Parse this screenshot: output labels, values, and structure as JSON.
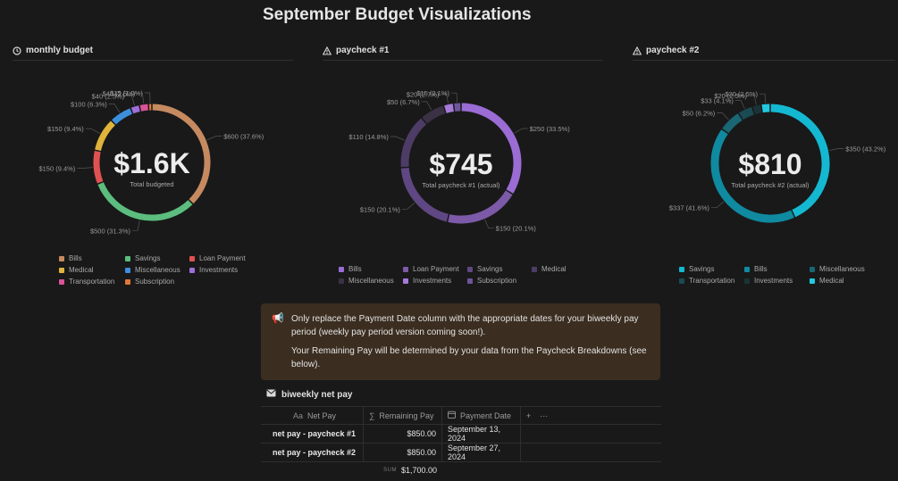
{
  "page": {
    "title": "September Budget Visualizations"
  },
  "panels": [
    {
      "title": "monthly budget",
      "center_value": "$1.6K",
      "center_caption": "Total budgeted",
      "slices": [
        {
          "name": "Bills",
          "value": 600,
          "label": "$600 (37.6%)",
          "color": "#c68a60"
        },
        {
          "name": "Savings",
          "value": 500,
          "label": "$500 (31.3%)",
          "color": "#5cbd7e"
        },
        {
          "name": "Loan Payment",
          "value": 150,
          "label": "$150 (9.4%)",
          "color": "#e05252"
        },
        {
          "name": "Medical",
          "value": 150,
          "label": "$150 (9.4%)",
          "color": "#e0b43a"
        },
        {
          "name": "Miscellaneous",
          "value": 100,
          "label": "$100 (6.3%)",
          "color": "#3d8fdc"
        },
        {
          "name": "Investments",
          "value": 40,
          "label": "$40 (2.5%)",
          "color": "#9e6fd8"
        },
        {
          "name": "Transportation",
          "value": 40,
          "label": "$40 (2.5%)",
          "color": "#d9529a"
        },
        {
          "name": "Subscription",
          "value": 15,
          "label": "$15 (1.0%)",
          "color": "#e0773a"
        }
      ],
      "legend": [
        "Bills",
        "Savings",
        "Loan Payment",
        "Medical",
        "Miscellaneous",
        "Investments",
        "Transportation",
        "Subscription"
      ]
    },
    {
      "title": "paycheck #1",
      "center_value": "$745",
      "center_caption": "Total paycheck #1 (actual)",
      "slices": [
        {
          "name": "Bills",
          "value": 250,
          "label": "$250 (33.5%)",
          "color": "#9a6cd4"
        },
        {
          "name": "Loan Payment",
          "value": 150,
          "label": "$150 (20.1%)",
          "color": "#7c5aa8"
        },
        {
          "name": "Savings",
          "value": 150,
          "label": "$150 (20.1%)",
          "color": "#5f4783"
        },
        {
          "name": "Medical",
          "value": 110,
          "label": "$110 (14.8%)",
          "color": "#4d3c66"
        },
        {
          "name": "Miscellaneous",
          "value": 50,
          "label": "$50 (6.7%)",
          "color": "#3b3145"
        },
        {
          "name": "Investments",
          "value": 20,
          "label": "$20 (2.7%)",
          "color": "#a57ad8"
        },
        {
          "name": "Subscription",
          "value": 15,
          "label": "$15 (2.1%)",
          "color": "#6e559b"
        }
      ],
      "legend": [
        "Bills",
        "Loan Payment",
        "Savings",
        "Medical",
        "Miscellaneous",
        "Investments",
        "Subscription"
      ]
    },
    {
      "title": "paycheck #2",
      "center_value": "$810",
      "center_caption": "Total paycheck #2 (actual)",
      "slices": [
        {
          "name": "Savings",
          "value": 350,
          "label": "$350 (43.2%)",
          "color": "#14b8d1"
        },
        {
          "name": "Bills",
          "value": 337,
          "label": "$337 (41.6%)",
          "color": "#0f8aa0"
        },
        {
          "name": "Miscellaneous",
          "value": 50,
          "label": "$50 (6.2%)",
          "color": "#1a6675"
        },
        {
          "name": "Transportation",
          "value": 33,
          "label": "$33 (4.1%)",
          "color": "#1a4a53"
        },
        {
          "name": "Investments",
          "value": 20,
          "label": "$20 (2.5%)",
          "color": "#1b3338"
        },
        {
          "name": "Medical",
          "value": 20,
          "label": "$20 (2.5%)",
          "color": "#22c8e0"
        }
      ],
      "legend": [
        "Savings",
        "Bills",
        "Miscellaneous",
        "Transportation",
        "Investments",
        "Medical"
      ]
    }
  ],
  "callout": {
    "icon": "megaphone-icon",
    "line1": "Only replace the Payment Date column with the appropriate dates for your biweekly pay period (weekly pay period version coming soon!).",
    "line2": "Your Remaining Pay will be determined by your data from the Paycheck Breakdowns (see below)."
  },
  "database": {
    "title": "biweekly net pay",
    "columns": {
      "name": "Net Pay",
      "remaining": "Remaining Pay",
      "date": "Payment Date",
      "name_icon": "Aa"
    },
    "rows": [
      {
        "name": "net pay - paycheck #1",
        "remaining": "$850.00",
        "date": "September 13, 2024"
      },
      {
        "name": "net pay - paycheck #2",
        "remaining": "$850.00",
        "date": "September 27, 2024"
      }
    ],
    "sum_label": "SUM",
    "sum_value": "$1,700.00"
  }
}
